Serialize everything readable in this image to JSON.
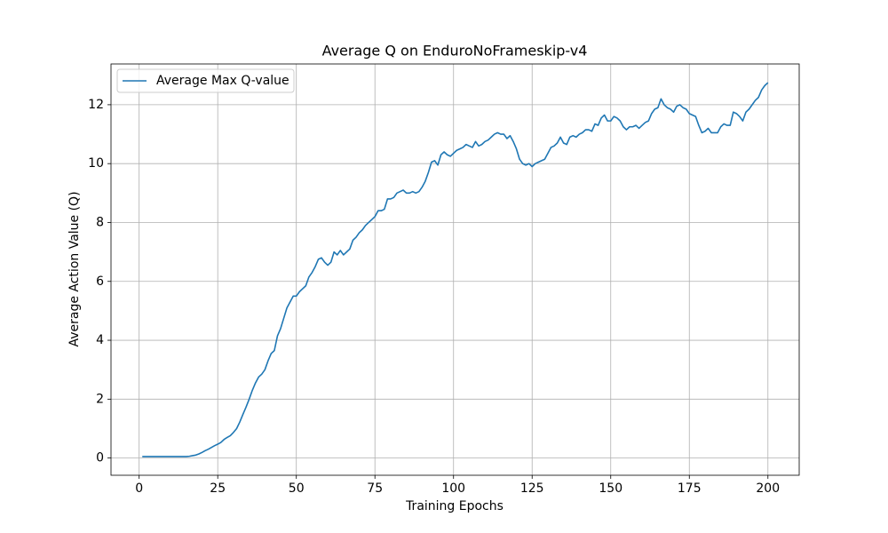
{
  "chart_data": {
    "type": "line",
    "title": "Average Q on EnduroNoFrameskip-v4",
    "xlabel": "Training Epochs",
    "ylabel": "Average Action Value (Q)",
    "x": [
      1,
      2,
      3,
      4,
      5,
      6,
      7,
      8,
      9,
      10,
      11,
      12,
      13,
      14,
      15,
      16,
      17,
      18,
      19,
      20,
      21,
      22,
      23,
      24,
      25,
      26,
      27,
      28,
      29,
      30,
      31,
      32,
      33,
      34,
      35,
      36,
      37,
      38,
      39,
      40,
      41,
      42,
      43,
      44,
      45,
      46,
      47,
      48,
      49,
      50,
      51,
      52,
      53,
      54,
      55,
      56,
      57,
      58,
      59,
      60,
      61,
      62,
      63,
      64,
      65,
      66,
      67,
      68,
      69,
      70,
      71,
      72,
      73,
      74,
      75,
      76,
      77,
      78,
      79,
      80,
      81,
      82,
      83,
      84,
      85,
      86,
      87,
      88,
      89,
      90,
      91,
      92,
      93,
      94,
      95,
      96,
      97,
      98,
      99,
      100,
      101,
      102,
      103,
      104,
      105,
      106,
      107,
      108,
      109,
      110,
      111,
      112,
      113,
      114,
      115,
      116,
      117,
      118,
      119,
      120,
      121,
      122,
      123,
      124,
      125,
      126,
      127,
      128,
      129,
      130,
      131,
      132,
      133,
      134,
      135,
      136,
      137,
      138,
      139,
      140,
      141,
      142,
      143,
      144,
      145,
      146,
      147,
      148,
      149,
      150,
      151,
      152,
      153,
      154,
      155,
      156,
      157,
      158,
      159,
      160,
      161,
      162,
      163,
      164,
      165,
      166,
      167,
      168,
      169,
      170,
      171,
      172,
      173,
      174,
      175,
      176,
      177,
      178,
      179,
      180,
      181,
      182,
      183,
      184,
      185,
      186,
      187,
      188,
      189,
      190,
      191,
      192,
      193,
      194,
      195,
      196,
      197,
      198,
      199,
      200
    ],
    "series": [
      {
        "name": "Average Max Q-value",
        "color": "#1f77b4",
        "values": [
          0.05,
          0.05,
          0.05,
          0.05,
          0.05,
          0.05,
          0.05,
          0.05,
          0.05,
          0.05,
          0.05,
          0.05,
          0.05,
          0.05,
          0.05,
          0.06,
          0.08,
          0.1,
          0.14,
          0.19,
          0.25,
          0.3,
          0.36,
          0.42,
          0.47,
          0.53,
          0.63,
          0.7,
          0.76,
          0.87,
          1.0,
          1.22,
          1.48,
          1.73,
          2.0,
          2.3,
          2.55,
          2.75,
          2.85,
          3.0,
          3.3,
          3.55,
          3.65,
          4.15,
          4.4,
          4.75,
          5.1,
          5.3,
          5.5,
          5.5,
          5.65,
          5.75,
          5.85,
          6.15,
          6.3,
          6.5,
          6.75,
          6.8,
          6.65,
          6.55,
          6.65,
          7.0,
          6.9,
          7.05,
          6.9,
          7.0,
          7.1,
          7.4,
          7.5,
          7.65,
          7.75,
          7.9,
          8.0,
          8.1,
          8.2,
          8.4,
          8.4,
          8.45,
          8.8,
          8.8,
          8.85,
          9.0,
          9.05,
          9.1,
          9.0,
          9.0,
          9.05,
          9.0,
          9.05,
          9.2,
          9.4,
          9.7,
          10.05,
          10.1,
          9.95,
          10.3,
          10.4,
          10.3,
          10.25,
          10.35,
          10.45,
          10.5,
          10.55,
          10.65,
          10.6,
          10.55,
          10.75,
          10.6,
          10.65,
          10.75,
          10.8,
          10.9,
          11.0,
          11.05,
          11.0,
          11.0,
          10.85,
          10.95,
          10.75,
          10.5,
          10.15,
          10.0,
          9.95,
          10.0,
          9.9,
          10.0,
          10.05,
          10.1,
          10.15,
          10.35,
          10.55,
          10.6,
          10.7,
          10.9,
          10.7,
          10.65,
          10.9,
          10.95,
          10.9,
          11.0,
          11.05,
          11.15,
          11.15,
          11.1,
          11.35,
          11.3,
          11.55,
          11.65,
          11.45,
          11.45,
          11.6,
          11.55,
          11.45,
          11.25,
          11.15,
          11.25,
          11.25,
          11.3,
          11.2,
          11.3,
          11.4,
          11.45,
          11.7,
          11.85,
          11.9,
          12.2,
          12.0,
          11.9,
          11.85,
          11.75,
          11.95,
          12.0,
          11.9,
          11.85,
          11.7,
          11.65,
          11.6,
          11.3,
          11.05,
          11.1,
          11.2,
          11.05,
          11.05,
          11.05,
          11.25,
          11.35,
          11.3,
          11.3,
          11.75,
          11.7,
          11.6,
          11.45,
          11.75,
          11.85,
          12.0,
          12.15,
          12.25,
          12.5,
          12.65,
          12.75
        ]
      }
    ],
    "xlim": [
      -8.95,
      209.95
    ],
    "xticks": [
      0,
      25,
      50,
      75,
      100,
      125,
      150,
      175,
      200
    ],
    "ylim": [
      -0.585,
      13.385
    ],
    "yticks": [
      0,
      2,
      4,
      6,
      8,
      10,
      12
    ],
    "grid": true,
    "legend": "upper left"
  }
}
